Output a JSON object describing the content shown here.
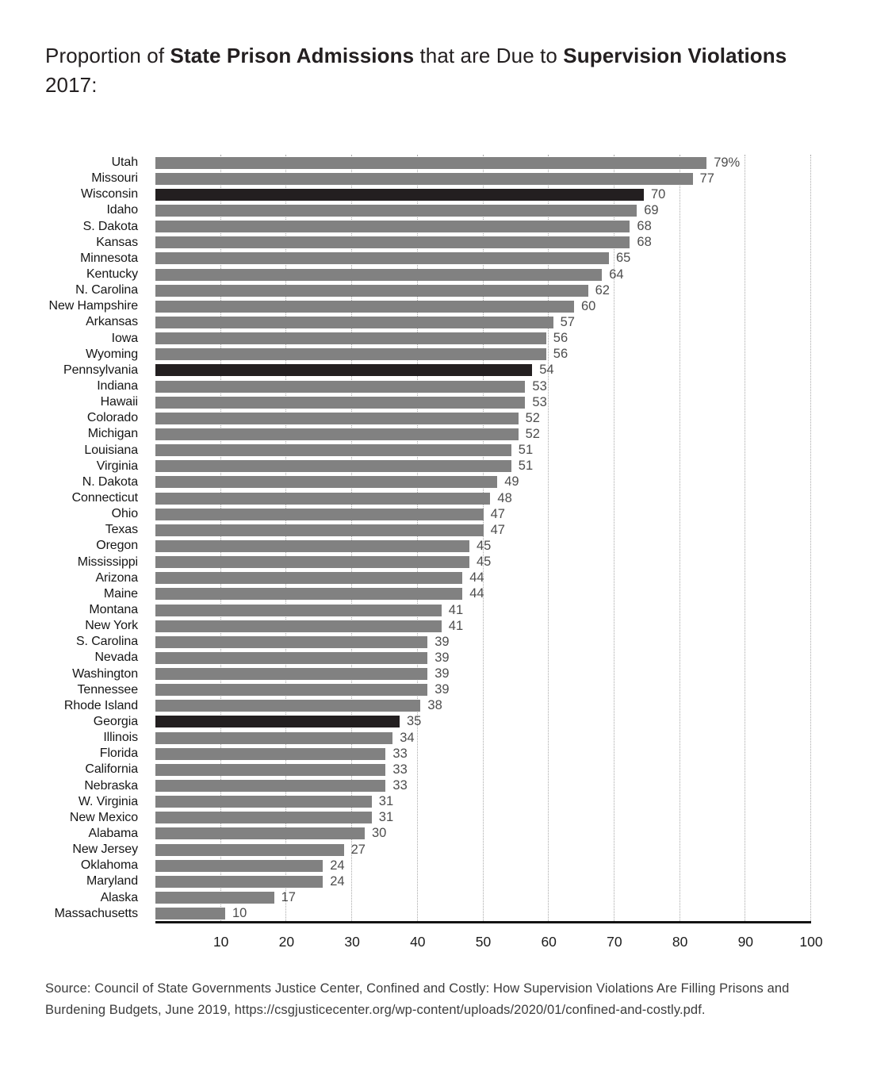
{
  "title": {
    "segments": [
      {
        "text": "Proportion of ",
        "bold": false
      },
      {
        "text": "State Prison Admissions",
        "bold": true
      },
      {
        "text": " that are Due to ",
        "bold": false
      },
      {
        "text": "Supervision Violations",
        "bold": true
      }
    ],
    "line2": "2017:"
  },
  "chart_data": {
    "type": "bar",
    "orientation": "horizontal",
    "title": "Proportion of State Prison Admissions that are Due to Supervision Violations 2017:",
    "xlabel": "",
    "ylabel": "",
    "xlim": [
      0,
      100
    ],
    "x_ticks": [
      10,
      20,
      30,
      40,
      50,
      60,
      70,
      80,
      90,
      100
    ],
    "grid": "vertical-dotted",
    "legend": "none",
    "bar_color": "#818181",
    "highlight_color": "#231f20",
    "categories": [
      "Utah",
      "Missouri",
      "Wisconsin",
      "Idaho",
      "S. Dakota",
      "Kansas",
      "Minnesota",
      "Kentucky",
      "N. Carolina",
      "New Hampshire",
      "Arkansas",
      "Iowa",
      "Wyoming",
      "Pennsylvania",
      "Indiana",
      "Hawaii",
      "Colorado",
      "Michigan",
      "Louisiana",
      "Virginia",
      "N. Dakota",
      "Connecticut",
      "Ohio",
      "Texas",
      "Oregon",
      "Mississippi",
      "Arizona",
      "Maine",
      "Montana",
      "New York",
      "S. Carolina",
      "Nevada",
      "Washington",
      "Tennessee",
      "Rhode Island",
      "Georgia",
      "Illinois",
      "Florida",
      "California",
      "Nebraska",
      "W. Virginia",
      "New Mexico",
      "Alabama",
      "New Jersey",
      "Oklahoma",
      "Maryland",
      "Alaska",
      "Massachusetts"
    ],
    "values": [
      79,
      77,
      70,
      69,
      68,
      68,
      65,
      64,
      62,
      60,
      57,
      56,
      56,
      54,
      53,
      53,
      52,
      52,
      51,
      51,
      49,
      48,
      47,
      47,
      45,
      45,
      44,
      44,
      41,
      41,
      39,
      39,
      39,
      39,
      38,
      35,
      34,
      33,
      33,
      33,
      31,
      31,
      30,
      27,
      24,
      24,
      17,
      10
    ],
    "value_labels": [
      "79%",
      "77",
      "70",
      "69",
      "68",
      "68",
      "65",
      "64",
      "62",
      "60",
      "57",
      "56",
      "56",
      "54",
      "53",
      "53",
      "52",
      "52",
      "51",
      "51",
      "49",
      "48",
      "47",
      "47",
      "45",
      "45",
      "44",
      "44",
      "41",
      "41",
      "39",
      "39",
      "39",
      "39",
      "38",
      "35",
      "34",
      "33",
      "33",
      "33",
      "31",
      "31",
      "30",
      "27",
      "24",
      "24",
      "17",
      "10"
    ],
    "highlighted_categories": [
      "Wisconsin",
      "Pennsylvania",
      "Georgia"
    ]
  },
  "source": {
    "line1": "Source: Council of State Governments Justice Center, Confined and Costly: How Supervision Violations Are Filling Prisons and",
    "line2": "Burdening Budgets, June 2019, https://csgjusticecenter.org/wp-content/uploads/2020/01/confined-and-costly.pdf."
  }
}
